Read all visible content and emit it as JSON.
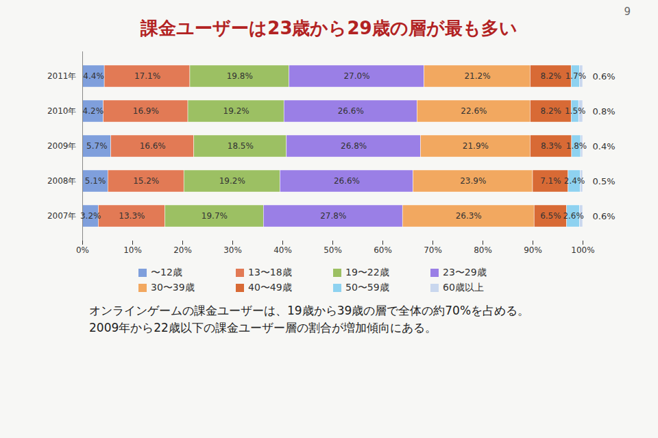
{
  "chart_data": {
    "type": "bar",
    "orientation": "horizontal",
    "stacked": true,
    "data_labels": true,
    "grid": false,
    "legend": "bottom",
    "page_number": "9",
    "title": "課金ユーザーは23歳から29歳の層が最も多い",
    "categories": [
      "2011年",
      "2010年",
      "2009年",
      "2008年",
      "2007年"
    ],
    "series": [
      {
        "name": "〜12歳",
        "color": "#7f9fdc",
        "values": [
          4.4,
          4.2,
          5.7,
          5.1,
          3.2
        ],
        "value_labels": [
          "4.4%",
          "4.2%",
          "5.7%",
          "5.1%",
          "3.2%"
        ]
      },
      {
        "name": "13〜18歳",
        "color": "#e27a55",
        "values": [
          17.1,
          16.9,
          16.6,
          15.2,
          13.3
        ],
        "value_labels": [
          "17.1%",
          "16.9%",
          "16.6%",
          "15.2%",
          "13.3%"
        ]
      },
      {
        "name": "19〜22歳",
        "color": "#9cc063",
        "values": [
          19.8,
          19.2,
          18.5,
          19.2,
          19.7
        ],
        "value_labels": [
          "19.8%",
          "19.2%",
          "18.5%",
          "19.2%",
          "19.7%"
        ]
      },
      {
        "name": "23〜29歳",
        "color": "#9a7fe6",
        "values": [
          27.0,
          26.6,
          26.8,
          26.6,
          27.8
        ],
        "value_labels": [
          "27.0%",
          "26.6%",
          "26.8%",
          "26.6%",
          "27.8%"
        ]
      },
      {
        "name": "30〜39歳",
        "color": "#f2a860",
        "values": [
          21.2,
          22.6,
          21.9,
          23.9,
          26.3
        ],
        "value_labels": [
          "21.2%",
          "22.6%",
          "21.9%",
          "23.9%",
          "26.3%"
        ]
      },
      {
        "name": "40〜49歳",
        "color": "#d86a35",
        "values": [
          8.2,
          8.2,
          8.3,
          7.1,
          6.5
        ],
        "value_labels": [
          "8.2%",
          "8.2%",
          "8.3%",
          "7.1%",
          "6.5%"
        ]
      },
      {
        "name": "50〜59歳",
        "color": "#8ed2f0",
        "values": [
          1.7,
          1.5,
          1.8,
          2.4,
          2.6
        ],
        "value_labels": [
          "1.7%",
          "1.5%",
          "1.8%",
          "2.4%",
          "2.6%"
        ]
      },
      {
        "name": "60歳以上",
        "color": "#c9d7ee",
        "values": [
          0.6,
          0.8,
          0.4,
          0.5,
          0.6
        ],
        "value_labels": [
          "0.6%",
          "0.8%",
          "0.4%",
          "0.5%",
          "0.6%"
        ]
      }
    ],
    "xlim": [
      0,
      100
    ],
    "xticks": [
      {
        "value": 0,
        "label": "0%"
      },
      {
        "value": 10,
        "label": "10%"
      },
      {
        "value": 20,
        "label": "20%"
      },
      {
        "value": 30,
        "label": "30%"
      },
      {
        "value": 40,
        "label": "40%"
      },
      {
        "value": 50,
        "label": "50%"
      },
      {
        "value": 60,
        "label": "60%"
      },
      {
        "value": 70,
        "label": "70%"
      },
      {
        "value": 80,
        "label": "80%"
      },
      {
        "value": 90,
        "label": "90%"
      },
      {
        "value": 100,
        "label": "100%"
      }
    ],
    "caption": [
      "オンラインゲームの課金ユーザーは、19歳から39歳の層で全体の約70%を占める。",
      "2009年から22歳以下の課金ユーザー層の割合が増加傾向にある。"
    ]
  }
}
